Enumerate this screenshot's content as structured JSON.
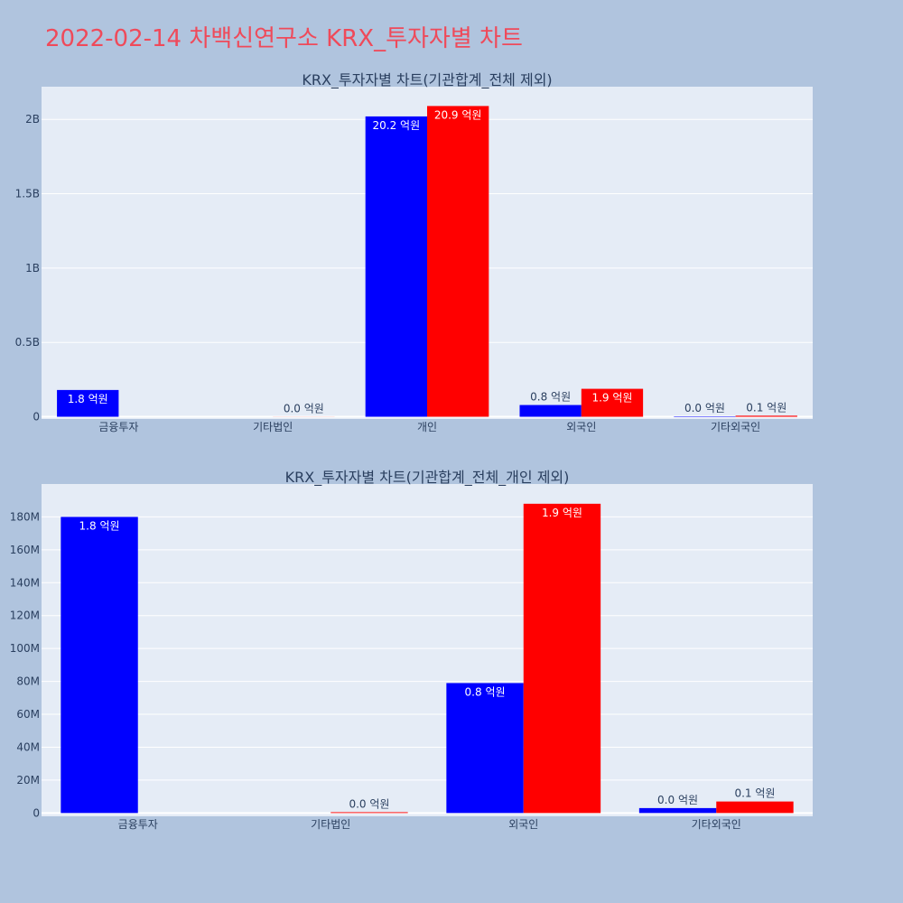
{
  "page_title": "2022-02-14 차백신연구소 KRX_투자자별 차트",
  "colors": {
    "background": "#b0c4de",
    "plot_bg": "#e5ecf6",
    "title": "#ef4a5a",
    "series_a": "#0000ff",
    "series_b": "#ff0000",
    "text": "#2a3f5f"
  },
  "chart_data": [
    {
      "type": "bar",
      "title": "KRX_투자자별 차트(기관합계_전체 제외)",
      "categories": [
        "금융투자",
        "기타법인",
        "개인",
        "외국인",
        "기타외국인"
      ],
      "series": [
        {
          "values": [
            180000000,
            0,
            2020000000,
            79000000,
            3000000
          ],
          "labels": [
            "1.8 억원",
            "",
            "20.2 억원",
            "0.8 억원",
            "0.0 억원"
          ]
        },
        {
          "values": [
            0,
            500000,
            2090000000,
            188000000,
            7000000
          ],
          "labels": [
            "",
            "0.0 억원",
            "20.9 억원",
            "1.9 억원",
            "0.1 억원"
          ]
        }
      ],
      "ylim": [
        -15000000,
        2220000000
      ],
      "yticks": [
        0,
        500000000,
        1000000000,
        1500000000,
        2000000000
      ],
      "ytick_labels": [
        "0",
        "0.5B",
        "1B",
        "1.5B",
        "2B"
      ],
      "grid": true
    },
    {
      "type": "bar",
      "title": "KRX_투자자별 차트(기관합계_전체_개인 제외)",
      "categories": [
        "금융투자",
        "기타법인",
        "외국인",
        "기타외국인"
      ],
      "series": [
        {
          "values": [
            180000000,
            0,
            79000000,
            3000000
          ],
          "labels": [
            "1.8 억원",
            "",
            "0.8 억원",
            "0.0 억원"
          ]
        },
        {
          "values": [
            0,
            500000,
            188000000,
            7000000
          ],
          "labels": [
            "",
            "0.0 억원",
            "1.9 억원",
            "0.1 억원"
          ]
        }
      ],
      "ylim": [
        -2000000,
        200000000
      ],
      "yticks": [
        0,
        20000000,
        40000000,
        60000000,
        80000000,
        100000000,
        120000000,
        140000000,
        160000000,
        180000000
      ],
      "ytick_labels": [
        "0",
        "20M",
        "40M",
        "60M",
        "80M",
        "100M",
        "120M",
        "140M",
        "160M",
        "180M"
      ],
      "grid": true
    }
  ]
}
